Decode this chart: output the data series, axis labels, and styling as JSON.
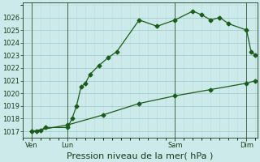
{
  "xlabel": "Pression niveau de la mer( hPa )",
  "bg_color": "#cceaea",
  "grid_major_color": "#aacccc",
  "grid_minor_color": "#bbdddd",
  "line_color": "#1a5c1a",
  "ylim": [
    1016.5,
    1027.2
  ],
  "yticks": [
    1017,
    1018,
    1019,
    1020,
    1021,
    1022,
    1023,
    1024,
    1025,
    1026
  ],
  "xlim": [
    -8,
    202
  ],
  "day_positions": [
    0,
    32,
    128,
    192
  ],
  "day_labels": [
    "Ven",
    "Lun",
    "Sam",
    "Dim"
  ],
  "line1_x": [
    0,
    4,
    8,
    12,
    32,
    36,
    40,
    44,
    48,
    52,
    60,
    68,
    76,
    96,
    112,
    128,
    144,
    152,
    160,
    168,
    176,
    192,
    196,
    200
  ],
  "line1_y": [
    1017.0,
    1017.0,
    1017.1,
    1017.3,
    1017.3,
    1018.0,
    1019.0,
    1020.5,
    1020.8,
    1021.5,
    1022.2,
    1022.8,
    1023.3,
    1025.8,
    1025.3,
    1025.8,
    1026.5,
    1026.2,
    1025.8,
    1026.0,
    1025.5,
    1025.0,
    1023.3,
    1023.0
  ],
  "line2_x": [
    0,
    32,
    64,
    96,
    128,
    160,
    192,
    200
  ],
  "line2_y": [
    1017.0,
    1017.5,
    1018.3,
    1019.2,
    1019.8,
    1020.3,
    1020.8,
    1021.0
  ],
  "font_color": "#1a3a1a",
  "tick_fontsize": 6,
  "xlabel_fontsize": 8,
  "marker_size": 2.5,
  "linewidth": 0.9
}
